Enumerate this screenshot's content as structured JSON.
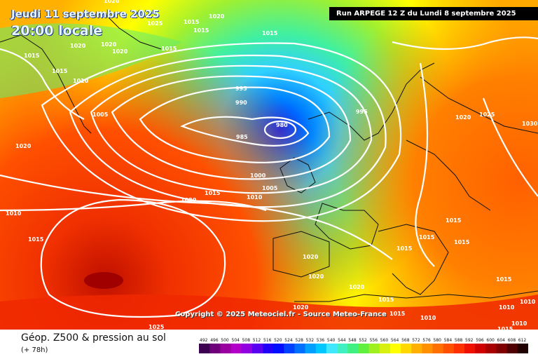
{
  "header": {
    "date_line": "Jeudi 11 septembre 2025",
    "time_line": "20:00 locale",
    "run_banner": "Run ARPEGE 12 Z du Lundi 8 septembre 2025"
  },
  "copyright": "Copyright © 2025 Meteociel.fr - Source Meteo-France",
  "footer": {
    "title": "Géop. Z500 & pression au sol",
    "subtitle": "(+ 78h)"
  },
  "scale": {
    "labels": [
      "492",
      "496",
      "500",
      "504",
      "508",
      "512",
      "516",
      "520",
      "524",
      "528",
      "532",
      "536",
      "540",
      "544",
      "548",
      "552",
      "556",
      "560",
      "564",
      "568",
      "572",
      "576",
      "580",
      "584",
      "588",
      "592",
      "596",
      "600",
      "604",
      "608",
      "612"
    ],
    "colors": [
      "#3d0050",
      "#6e007a",
      "#9a00a0",
      "#b200c8",
      "#9000e0",
      "#5a00f0",
      "#2200f8",
      "#0010ff",
      "#0040ff",
      "#0070ff",
      "#00a0ff",
      "#00c8ff",
      "#40e8ff",
      "#40f0c0",
      "#40f080",
      "#60f040",
      "#a0f020",
      "#d8f010",
      "#ffff00",
      "#ffd800",
      "#ffb000",
      "#ff9000",
      "#ff7000",
      "#ff5000",
      "#ff3000",
      "#f01000",
      "#d00000",
      "#a80000",
      "#800000",
      "#500000",
      "#200000"
    ]
  },
  "isobar_labels": [
    "1020",
    "1020",
    "1025",
    "1015",
    "1015",
    "1015",
    "1020",
    "1020",
    "1020",
    "1015",
    "1015",
    "1015",
    "1010",
    "1005",
    "1020",
    "995",
    "990",
    "985",
    "980",
    "995",
    "1000",
    "1005",
    "1010",
    "1015",
    "1020",
    "1010",
    "1015",
    "1020",
    "1025",
    "1030",
    "1015",
    "1015",
    "1015",
    "1015",
    "1020",
    "1020",
    "1020",
    "1015",
    "1015",
    "1010",
    "1015",
    "1010",
    "1025",
    "1015",
    "1010",
    "1010",
    "1020"
  ]
}
